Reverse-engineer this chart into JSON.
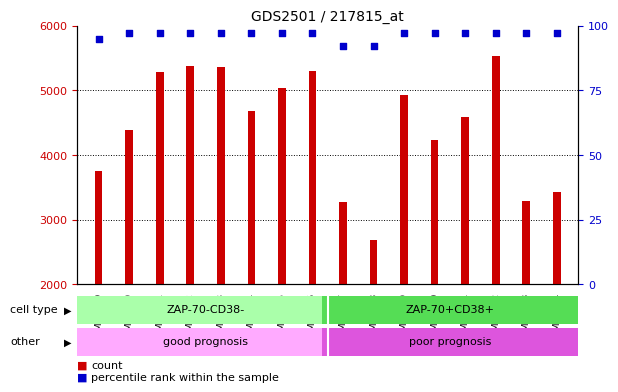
{
  "title": "GDS2501 / 217815_at",
  "samples": [
    "GSM99339",
    "GSM99340",
    "GSM99341",
    "GSM99342",
    "GSM99343",
    "GSM99344",
    "GSM99345",
    "GSM99346",
    "GSM99347",
    "GSM99348",
    "GSM99349",
    "GSM99350",
    "GSM99351",
    "GSM99352",
    "GSM99353",
    "GSM99354"
  ],
  "counts": [
    3750,
    4380,
    5280,
    5370,
    5360,
    4680,
    5030,
    5300,
    3280,
    2680,
    4920,
    4230,
    4590,
    5530,
    3290,
    3430
  ],
  "percentile_ranks": [
    95,
    97,
    97,
    97,
    97,
    97,
    97,
    97,
    92,
    92,
    97,
    97,
    97,
    97,
    97,
    97
  ],
  "bar_color": "#cc0000",
  "dot_color": "#0000cc",
  "ylim_left": [
    2000,
    6000
  ],
  "ylim_right": [
    0,
    100
  ],
  "yticks_left": [
    2000,
    3000,
    4000,
    5000,
    6000
  ],
  "yticks_right": [
    0,
    25,
    50,
    75,
    100
  ],
  "cell_type_groups": [
    {
      "label": "ZAP-70-CD38-",
      "start": 0,
      "end": 8,
      "color": "#aaffaa"
    },
    {
      "label": "ZAP-70+CD38+",
      "start": 8,
      "end": 16,
      "color": "#55dd55"
    }
  ],
  "other_groups": [
    {
      "label": "good prognosis",
      "start": 0,
      "end": 8,
      "color": "#ffaaff"
    },
    {
      "label": "poor prognosis",
      "start": 8,
      "end": 16,
      "color": "#dd55dd"
    }
  ],
  "group_row_labels": [
    "cell type",
    "other"
  ],
  "legend_items": [
    {
      "label": "count",
      "color": "#cc0000"
    },
    {
      "label": "percentile rank within the sample",
      "color": "#0000cc"
    }
  ],
  "title_fontsize": 10,
  "axis_label_color_left": "#cc0000",
  "axis_label_color_right": "#0000cc",
  "grid_color": "#000000",
  "background_color": "#ffffff"
}
